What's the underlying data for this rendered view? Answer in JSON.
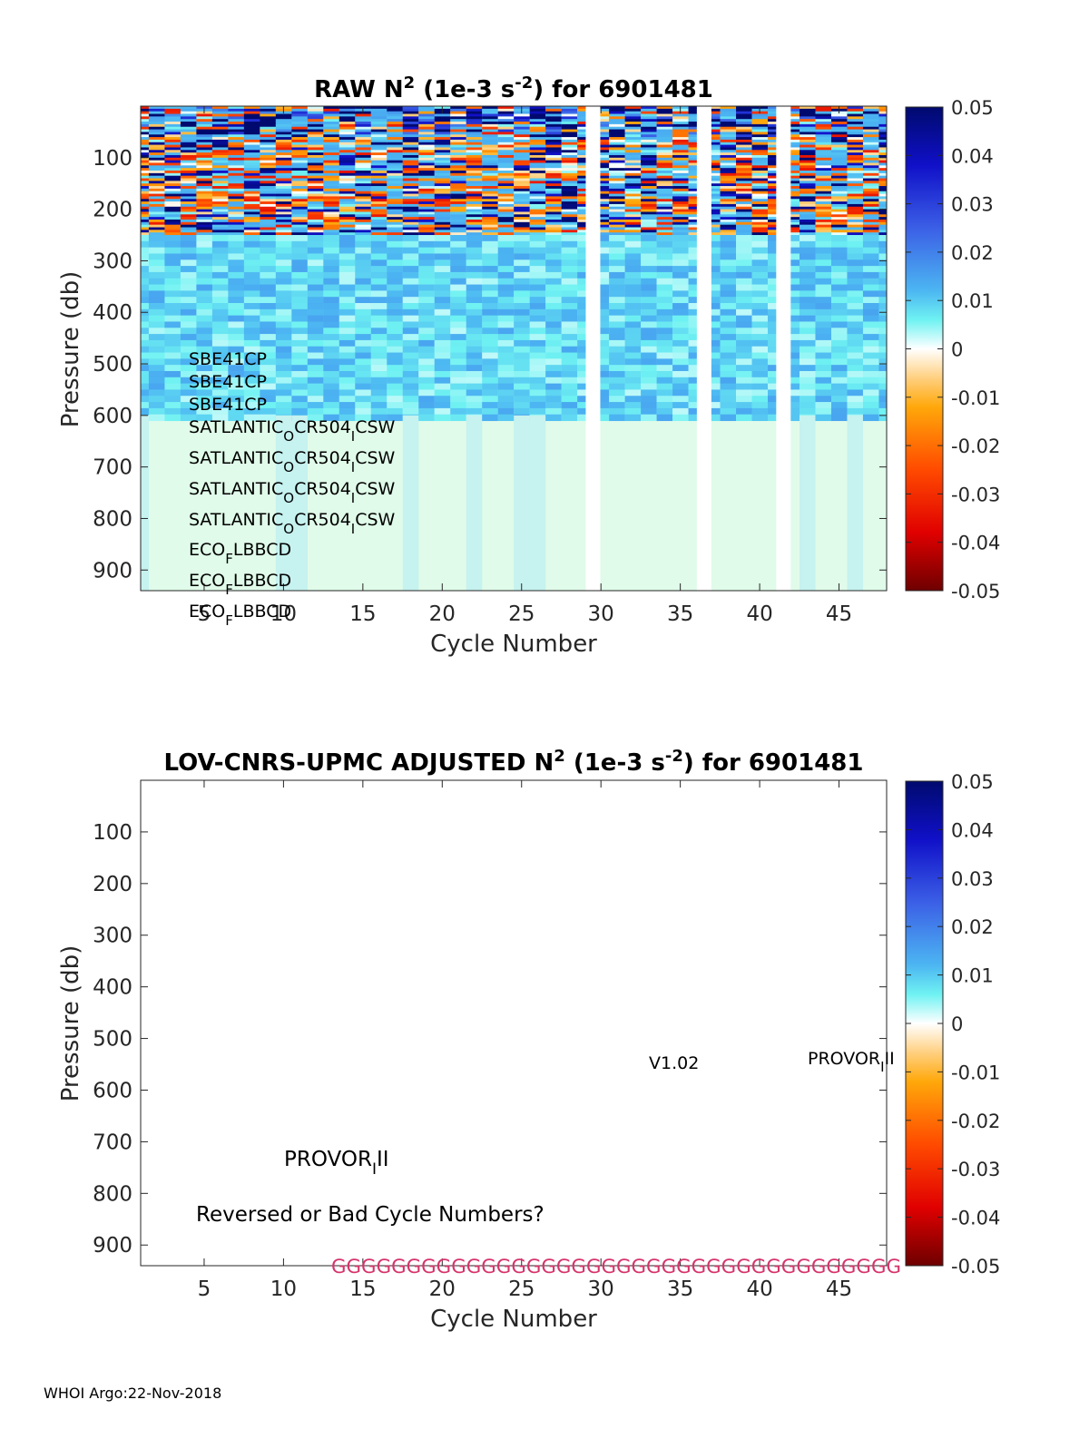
{
  "panels": [
    {
      "id": "raw",
      "title_pre": "RAW N",
      "title_sup": "2",
      "title_mid": " (1e-3 s",
      "title_sup2": "-2",
      "title_post": ") for 6901481",
      "ylabel": "Pressure (db)",
      "xlabel": "Cycle Number",
      "sensor_lines": [
        {
          "a": "SBE41CP",
          "sub": "",
          "b": ""
        },
        {
          "a": "SBE41CP",
          "sub": "",
          "b": ""
        },
        {
          "a": "SBE41CP",
          "sub": "",
          "b": ""
        },
        {
          "a": "SATLANTIC",
          "sub": "O",
          "b": "CR504",
          "sub2": "I",
          "c": "CSW"
        },
        {
          "a": "SATLANTIC",
          "sub": "O",
          "b": "CR504",
          "sub2": "I",
          "c": "CSW"
        },
        {
          "a": "SATLANTIC",
          "sub": "O",
          "b": "CR504",
          "sub2": "I",
          "c": "CSW"
        },
        {
          "a": "SATLANTIC",
          "sub": "O",
          "b": "CR504",
          "sub2": "I",
          "c": "CSW"
        },
        {
          "a": "ECO",
          "sub": "F",
          "b": "LBBCD"
        },
        {
          "a": "ECO",
          "sub": "F",
          "b": "LBBCD"
        },
        {
          "a": "ECO",
          "sub": "F",
          "b": "LBBCD"
        }
      ]
    },
    {
      "id": "adjusted",
      "title_pre": "LOV-CNRS-UPMC  ADJUSTED N",
      "title_sup": "2",
      "title_mid": " (1e-3 s",
      "title_sup2": "-2",
      "title_post": ") for 6901481",
      "ylabel": "Pressure (db)",
      "xlabel": "Cycle Number",
      "version": "V1.02",
      "platform_a": "PROVOR",
      "platform_sub": "I",
      "platform_b": "II",
      "warning": "Reversed or Bad Cycle Numbers?",
      "qc_flags": "GGGGGGGGGGGGGGGGGGGGGGGGGGGGGGGGGGGGGG"
    }
  ],
  "colorbar": {
    "ticks": [
      "0.05",
      "0.04",
      "0.03",
      "0.02",
      "0.01",
      "0",
      "-0.01",
      "-0.02",
      "-0.03",
      "-0.04",
      "-0.05"
    ]
  },
  "footer": "WHOI Argo:22-Nov-2018",
  "chart_data": [
    {
      "type": "heatmap",
      "title": "RAW N2 (1e-3 s-2) for 6901481",
      "xlabel": "Cycle Number",
      "ylabel": "Pressure (db)",
      "xlim": [
        1,
        48
      ],
      "ylim": [
        0,
        940
      ],
      "y_reversed": true,
      "x_ticks": [
        5,
        10,
        15,
        20,
        25,
        30,
        35,
        40,
        45
      ],
      "y_ticks": [
        100,
        200,
        300,
        400,
        500,
        600,
        700,
        800,
        900
      ],
      "clim": [
        -0.05,
        0.05
      ],
      "colormap": "jet-with-white-center",
      "missing_cycles": [
        29.5,
        36.5,
        41.5
      ],
      "layers": [
        {
          "pressure_range": [
            0,
            250
          ],
          "description": "highly variable, -0.05 to 0.05"
        },
        {
          "pressure_range": [
            250,
            600
          ],
          "approx_value": 0.008
        },
        {
          "pressure_range": [
            600,
            940
          ],
          "approx_value": 0.003
        }
      ]
    },
    {
      "type": "heatmap",
      "title": "LOV-CNRS-UPMC  ADJUSTED N2 (1e-3 s-2) for 6901481",
      "xlabel": "Cycle Number",
      "ylabel": "Pressure (db)",
      "xlim": [
        1,
        48
      ],
      "ylim": [
        0,
        940
      ],
      "y_reversed": true,
      "x_ticks": [
        5,
        10,
        15,
        20,
        25,
        30,
        35,
        40,
        45
      ],
      "y_ticks": [
        100,
        200,
        300,
        400,
        500,
        600,
        700,
        800,
        900
      ],
      "clim": [
        -0.05,
        0.05
      ],
      "values": []
    }
  ]
}
